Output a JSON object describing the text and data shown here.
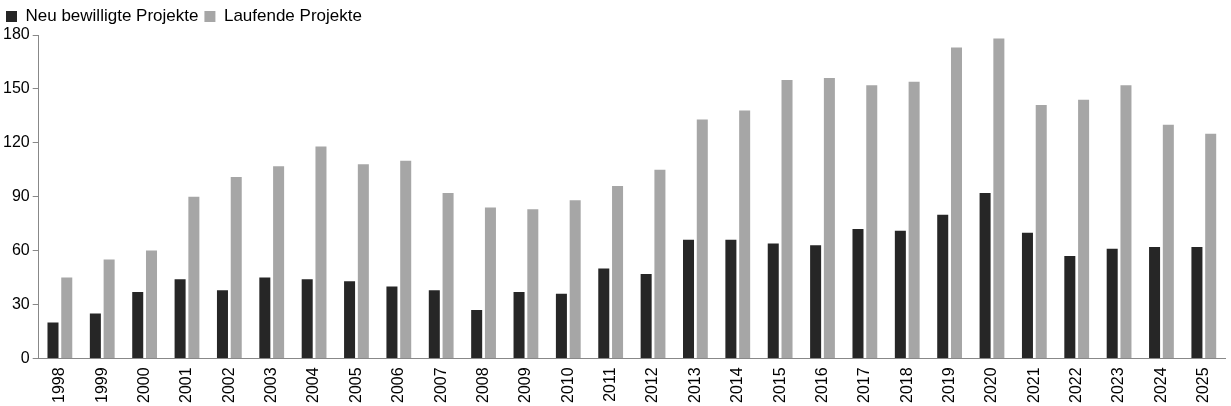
{
  "chart_data": {
    "type": "bar",
    "categories": [
      "1998",
      "1999",
      "2000",
      "2001",
      "2002",
      "2003",
      "2004",
      "2005",
      "2006",
      "2007",
      "2008",
      "2009",
      "2010",
      "2011",
      "2012",
      "2013",
      "2014",
      "2015",
      "2016",
      "2017",
      "2018",
      "2019",
      "2020",
      "2021",
      "2022",
      "2023",
      "2024",
      "2025"
    ],
    "series": [
      {
        "name": "Neu bewilligte Projekte",
        "color": "#262626",
        "values": [
          20,
          25,
          37,
          44,
          38,
          45,
          44,
          43,
          40,
          38,
          27,
          37,
          36,
          50,
          47,
          66,
          66,
          64,
          63,
          72,
          71,
          80,
          92,
          70,
          57,
          61,
          62,
          62
        ]
      },
      {
        "name": "Laufende Projekte",
        "color": "#a6a6a6",
        "values": [
          45,
          55,
          60,
          90,
          101,
          107,
          118,
          108,
          110,
          92,
          84,
          83,
          88,
          96,
          105,
          133,
          138,
          155,
          156,
          152,
          154,
          173,
          178,
          141,
          144,
          152,
          130,
          125
        ]
      }
    ],
    "ylim": [
      0,
      180
    ],
    "yticks": [
      0,
      30,
      60,
      90,
      120,
      150,
      180
    ],
    "grid": false,
    "legend": "top left"
  }
}
